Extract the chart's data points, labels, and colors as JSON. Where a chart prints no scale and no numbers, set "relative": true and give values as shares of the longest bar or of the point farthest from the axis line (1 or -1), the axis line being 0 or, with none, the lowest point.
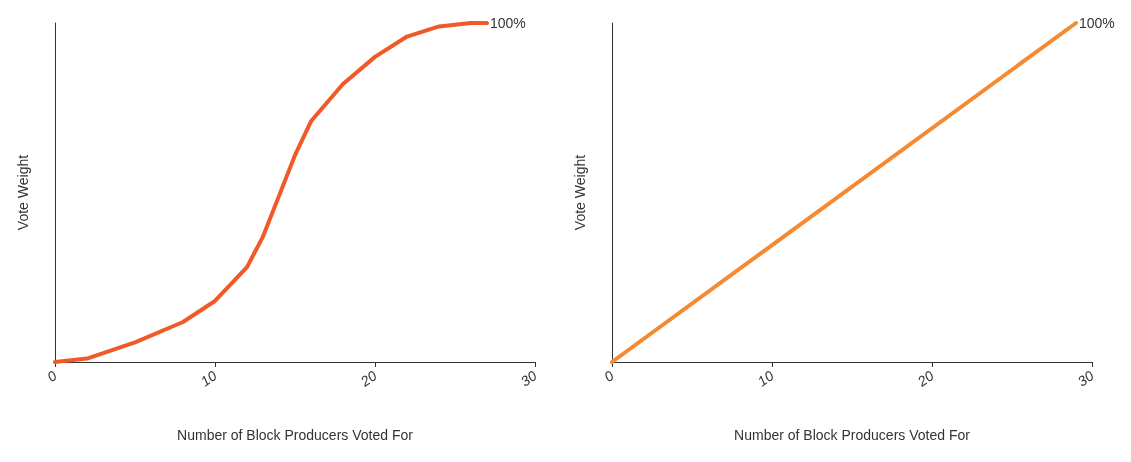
{
  "chart_data": [
    {
      "type": "line",
      "xlabel": "Number of Block Producers Voted For",
      "ylabel": "Vote Weight",
      "relative": true,
      "xlim": [
        0,
        30
      ],
      "xticks": [
        0,
        10,
        20,
        30
      ],
      "tick_labels": "x",
      "marker": "none",
      "grid": false,
      "series": [
        {
          "color": "#f05a28",
          "x": [
            0,
            2,
            5,
            8,
            10,
            12,
            13,
            14,
            15,
            16,
            18,
            20,
            22,
            24,
            26,
            27
          ],
          "values": [
            0,
            0.01,
            0.058,
            0.118,
            0.18,
            0.28,
            0.37,
            0.49,
            0.61,
            0.71,
            0.82,
            0.9,
            0.96,
            0.99,
            1,
            1
          ]
        }
      ],
      "annotations": [
        {
          "text": "100%",
          "x": 27,
          "y": 1
        }
      ]
    },
    {
      "type": "line",
      "xlabel": "Number of Block Producers Voted For",
      "ylabel": "Vote Weight",
      "relative": true,
      "xlim": [
        0,
        30
      ],
      "xticks": [
        0,
        10,
        20,
        30
      ],
      "tick_labels": "x",
      "marker": "none",
      "grid": false,
      "series": [
        {
          "color": "#f58a33",
          "x": [
            0,
            29
          ],
          "values": [
            0,
            1
          ]
        }
      ],
      "annotations": [
        {
          "text": "100%",
          "x": 29,
          "y": 1
        }
      ]
    }
  ]
}
